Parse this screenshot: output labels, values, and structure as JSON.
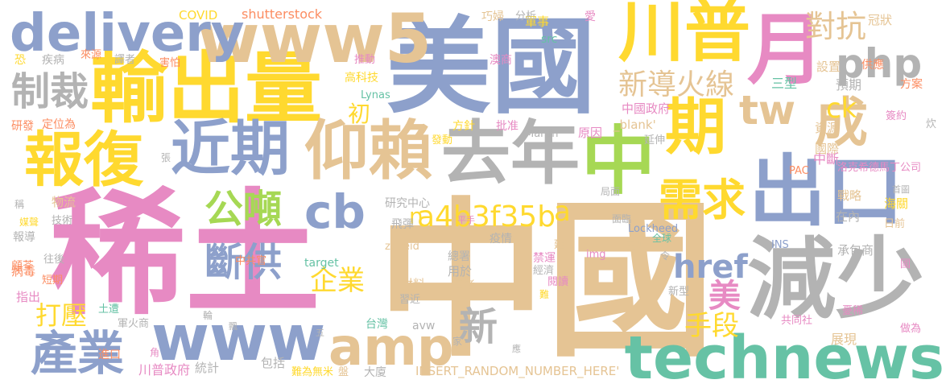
{
  "palette": {
    "pink": "#e78ac3",
    "green": "#a6d854",
    "yellow": "#ffd92f",
    "tan": "#e5c494",
    "gray": "#b3b3b3",
    "blue": "#8da0cb",
    "orange": "#fc8d62",
    "teal": "#66c2a5"
  },
  "words": [
    "稀土",
    "中國",
    "美國",
    "輸出量",
    "減少",
    "出口",
    "中",
    "月",
    "川普",
    "www5",
    "delivery",
    "去年",
    "仰賴",
    "近期",
    "報復",
    "期",
    "成",
    "technews",
    "www",
    "amp",
    "cb",
    "tw",
    "php",
    "產業",
    "需求",
    "公噸",
    "斷供",
    "新導火線",
    "對抗",
    "制裁",
    "a4b3f35b",
    "href",
    "新",
    "企業",
    "打壓",
    "手段",
    "美",
    "ck",
    "初",
    "n",
    "a",
    "COVID",
    "shutterstock",
    "軍事",
    "巧婦",
    "分析",
    "愛",
    "冠狀",
    "src",
    "恐",
    "疾病",
    "來源",
    "譯者",
    "害怕",
    "推動",
    "澳商",
    "高科技",
    "Lynas",
    "設置",
    "供應",
    "三型",
    "預期",
    "方案",
    "研發",
    "定位為",
    "方針",
    "批准",
    "發動",
    "中國政府",
    "_blank'",
    "簽約",
    "原因",
    "延伸",
    "Martin",
    "資源",
    "炊",
    "國際",
    "中斷",
    "洛克希德馬丁公司",
    "PAC",
    "張",
    "物流",
    "研究中心",
    "稱",
    "媒聲",
    "技術",
    "報導",
    "飛彈",
    "平手",
    "疫情",
    "局面",
    "戰略",
    "首圖",
    "海關",
    "在內",
    "日前",
    "面臨",
    "Lockheed",
    "王牌",
    "zoneid",
    "總署",
    "img",
    "全球",
    "令",
    "INS",
    "承包商",
    "顧荃",
    "往後",
    "中共官",
    "target",
    "禁運",
    "經濟",
    "延壽",
    "用於",
    "國者",
    "國",
    "病毒",
    "短期",
    "材料",
    "指出",
    "新型",
    "閱讀",
    "難",
    "習近",
    "台灣",
    "avw",
    "家",
    "應",
    "土遭",
    "軍火商",
    "進口",
    "角",
    "輪",
    "五",
    "共同社",
    "展現",
    "憂稀",
    "做為",
    "川普政府",
    "統計",
    "包括",
    "難為無米",
    "盤",
    "大廈",
    "INSERT_RANDOM_NUMBER_HERE'",
    "飄"
  ]
}
